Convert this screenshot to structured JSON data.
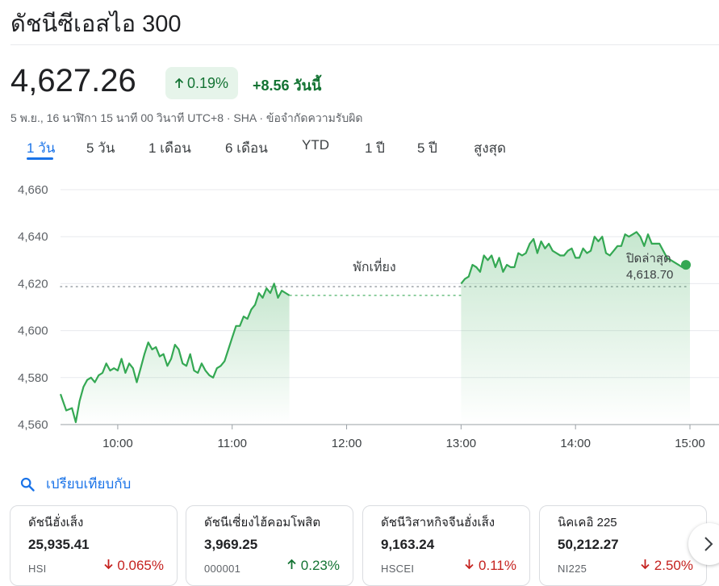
{
  "header": {
    "title": "ดัชนีซีเอสไอ 300"
  },
  "quote": {
    "price": "4,627.26",
    "pct_change": "0.19%",
    "abs_change": "+8.56 วันนี้",
    "meta": "5 พ.ย., 16 นาฬิกา 15 นาที 00 วินาที UTC+8 · SHA · ข้อจำกัดความรับผิด",
    "up_color": "#137333"
  },
  "tabs": [
    {
      "label": "1 วัน",
      "active": true
    },
    {
      "label": "5 วัน"
    },
    {
      "label": "1 เดือน"
    },
    {
      "label": "6 เดือน"
    },
    {
      "label": "YTD"
    },
    {
      "label": "1 ปี"
    },
    {
      "label": "5 ปี"
    },
    {
      "label": "สูงสุด"
    }
  ],
  "chart_data": {
    "type": "line",
    "y_ticks": [
      "4,560",
      "4,580",
      "4,600",
      "4,620",
      "4,640",
      "4,660"
    ],
    "x_ticks": [
      "10:00",
      "11:00",
      "12:00",
      "13:00",
      "14:00",
      "15:00"
    ],
    "ylim": [
      4560,
      4660
    ],
    "xlim": [
      "09:30",
      "15:00"
    ],
    "previous_close": 4618.7,
    "lunch_break_label": "พักเที่ยง",
    "last_close_label": "ปิดล่าสุด",
    "last_close_value": "4,618.70",
    "line_color": "#34a853",
    "series": [
      {
        "segment": "morning",
        "x": [
          "09:30",
          "09:33",
          "09:36",
          "09:38",
          "09:40",
          "09:42",
          "09:44",
          "09:46",
          "09:48",
          "09:50",
          "09:52",
          "09:54",
          "09:56",
          "09:58",
          "10:00",
          "10:02",
          "10:04",
          "10:06",
          "10:08",
          "10:10",
          "10:12",
          "10:14",
          "10:16",
          "10:18",
          "10:20",
          "10:22",
          "10:24",
          "10:26",
          "10:28",
          "10:30",
          "10:32",
          "10:34",
          "10:36",
          "10:38",
          "10:40",
          "10:42",
          "10:44",
          "10:46",
          "10:48",
          "10:50",
          "10:52",
          "10:54",
          "10:56",
          "10:58",
          "11:00",
          "11:02",
          "11:04",
          "11:06",
          "11:08",
          "11:10",
          "11:12",
          "11:14",
          "11:16",
          "11:18",
          "11:20",
          "11:22",
          "11:24",
          "11:26",
          "11:28",
          "11:30"
        ],
        "y": [
          4573,
          4566,
          4567,
          4561,
          4570,
          4576,
          4579,
          4580,
          4578,
          4581,
          4582,
          4586,
          4583,
          4584,
          4583,
          4588,
          4582,
          4586,
          4584,
          4578,
          4584,
          4590,
          4595,
          4592,
          4593,
          4589,
          4590,
          4585,
          4588,
          4594,
          4592,
          4586,
          4585,
          4590,
          4583,
          4582,
          4586,
          4583,
          4581,
          4580,
          4584,
          4585,
          4587,
          4592,
          4597,
          4602,
          4602,
          4606,
          4605,
          4609,
          4611,
          4616,
          4614,
          4618,
          4616,
          4620,
          4614,
          4617,
          4616,
          4615
        ]
      },
      {
        "segment": "afternoon",
        "x": [
          "13:00",
          "13:02",
          "13:04",
          "13:06",
          "13:08",
          "13:10",
          "13:12",
          "13:14",
          "13:16",
          "13:18",
          "13:20",
          "13:22",
          "13:24",
          "13:26",
          "13:28",
          "13:30",
          "13:32",
          "13:34",
          "13:36",
          "13:38",
          "13:40",
          "13:42",
          "13:44",
          "13:46",
          "13:48",
          "13:50",
          "13:52",
          "13:54",
          "13:56",
          "13:58",
          "14:00",
          "14:02",
          "14:04",
          "14:06",
          "14:08",
          "14:10",
          "14:12",
          "14:14",
          "14:16",
          "14:18",
          "14:20",
          "14:22",
          "14:24",
          "14:26",
          "14:28",
          "14:30",
          "14:32",
          "14:34",
          "14:36",
          "14:38",
          "14:40",
          "14:42",
          "14:44",
          "14:46",
          "14:48",
          "14:50",
          "14:52",
          "14:54",
          "14:56",
          "14:58",
          "15:00"
        ],
        "y": [
          4620,
          4622,
          4623,
          4628,
          4627,
          4625,
          4632,
          4630,
          4632,
          4627,
          4631,
          4625,
          4628,
          4627,
          4627,
          4633,
          4632,
          4633,
          4637,
          4639,
          4633,
          4638,
          4635,
          4637,
          4634,
          4633,
          4632,
          4632,
          4634,
          4635,
          4631,
          4631,
          4635,
          4633,
          4634,
          4640,
          4638,
          4640,
          4633,
          4632,
          4634,
          4636,
          4636,
          4641,
          4640,
          4641,
          4642,
          4640,
          4636,
          4641,
          4637,
          4637,
          4637,
          4634,
          4631,
          4630,
          4629,
          4628,
          4627,
          4628,
          4628
        ]
      }
    ]
  },
  "compare": {
    "label": "เปรียบเทียบกับ",
    "icon": "search-icon"
  },
  "cards": [
    {
      "name": "ดัชนีฮั่งเส็ง",
      "value": "25,935.41",
      "symbol": "HSI",
      "change": "0.065%",
      "direction": "down"
    },
    {
      "name": "ดัชนีเซี่ยงไฮ้คอมโพสิต",
      "value": "3,969.25",
      "symbol": "000001",
      "change": "0.23%",
      "direction": "up"
    },
    {
      "name": "ดัชนีวิสาหกิจจีนฮั่งเส็ง",
      "value": "9,163.24",
      "symbol": "HSCEI",
      "change": "0.11%",
      "direction": "down"
    },
    {
      "name": "นิคเคอิ 225",
      "value": "50,212.27",
      "symbol": "NI225",
      "change": "2.50%",
      "direction": "down"
    }
  ]
}
